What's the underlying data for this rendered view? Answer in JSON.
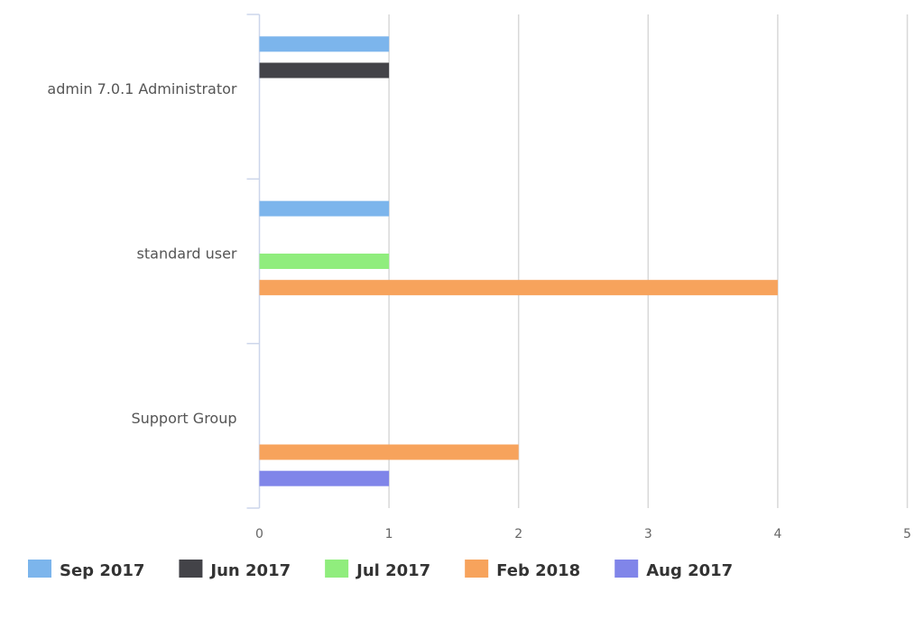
{
  "chart_data": {
    "type": "bar",
    "orientation": "horizontal",
    "title": "",
    "xlabel": "",
    "ylabel": "",
    "categories": [
      "admin 7.0.1 Administrator",
      "standard user",
      "Support Group"
    ],
    "series": [
      {
        "name": "Sep 2017",
        "color": "#7cb5ec",
        "values": [
          1,
          1,
          null
        ]
      },
      {
        "name": "Jun 2017",
        "color": "#434348",
        "values": [
          1,
          null,
          null
        ]
      },
      {
        "name": "Jul 2017",
        "color": "#90ed7d",
        "values": [
          null,
          1,
          null
        ]
      },
      {
        "name": "Feb 2018",
        "color": "#f7a35c",
        "values": [
          null,
          4,
          2
        ]
      },
      {
        "name": "Aug 2017",
        "color": "#8085e9",
        "values": [
          null,
          null,
          1
        ]
      }
    ],
    "xlim": [
      0,
      5
    ],
    "ticks": [
      "0",
      "1",
      "2",
      "3",
      "4",
      "5"
    ],
    "grid": true,
    "legend_position": "bottom"
  }
}
